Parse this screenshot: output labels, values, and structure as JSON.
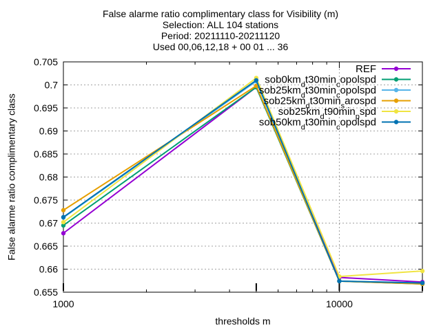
{
  "chart_data": {
    "type": "line",
    "title": [
      "False alarme ratio complimentary class  for Visibility (m)",
      "Selection: ALL     104 stations",
      "Period: 20211110-20211120",
      "Used 00,06,12,18 + 00 01 ... 36"
    ],
    "xlabel": "thresholds m",
    "ylabel": "False alarme ratio complimentary class",
    "x_scale": "log",
    "xlim": [
      1000,
      20000
    ],
    "ylim": [
      0.655,
      0.705
    ],
    "x_ticks": [
      {
        "value": 1000,
        "label": "1000"
      },
      {
        "value": 10000,
        "label": "10000"
      }
    ],
    "y_ticks": [
      {
        "value": 0.655,
        "label": "0.655"
      },
      {
        "value": 0.66,
        "label": "0.66"
      },
      {
        "value": 0.665,
        "label": "0.665"
      },
      {
        "value": 0.67,
        "label": "0.67"
      },
      {
        "value": 0.675,
        "label": "0.675"
      },
      {
        "value": 0.68,
        "label": "0.68"
      },
      {
        "value": 0.685,
        "label": "0.685"
      },
      {
        "value": 0.69,
        "label": "0.69"
      },
      {
        "value": 0.695,
        "label": "0.695"
      },
      {
        "value": 0.7,
        "label": "0.7"
      },
      {
        "value": 0.705,
        "label": "0.705"
      }
    ],
    "grid": true,
    "legend_position": "top-right",
    "x": [
      1000,
      5000,
      10000,
      20000
    ],
    "series": [
      {
        "name": "REF",
        "label_parts": [
          [
            "REF",
            ""
          ]
        ],
        "color": "#9400d3",
        "values": [
          0.6678,
          0.6995,
          0.6582,
          0.6572
        ]
      },
      {
        "name": "sob0km_dt30min_copolspd",
        "label_parts": [
          [
            "sob0km",
            ""
          ],
          [
            "d",
            "sub"
          ],
          [
            "t30min",
            ""
          ],
          [
            "c",
            "sub"
          ],
          [
            "opolspd",
            ""
          ]
        ],
        "color": "#009e73",
        "values": [
          0.6695,
          0.6995,
          0.6574,
          0.6568
        ]
      },
      {
        "name": "sob25km_dt30min_copolspd",
        "label_parts": [
          [
            "sob25km",
            ""
          ],
          [
            "d",
            "sub"
          ],
          [
            "t30min",
            ""
          ],
          [
            "c",
            "sub"
          ],
          [
            "opolspd",
            ""
          ]
        ],
        "color": "#56b4e9",
        "values": [
          0.6712,
          0.7008,
          0.6574,
          0.657
        ]
      },
      {
        "name": "sob25km_dt30min_sarospd",
        "label_parts": [
          [
            "sob25km",
            ""
          ],
          [
            "d",
            "sub"
          ],
          [
            "t30min",
            ""
          ],
          [
            "s",
            "sub"
          ],
          [
            "arospd",
            ""
          ]
        ],
        "color": "#e69f00",
        "values": [
          0.6728,
          0.6998,
          0.6574,
          0.6568
        ]
      },
      {
        "name": "sob25km_dt90min_pspd",
        "label_parts": [
          [
            "sob25km",
            ""
          ],
          [
            "d",
            "sub"
          ],
          [
            "t90min",
            ""
          ],
          [
            "p",
            "sub"
          ],
          [
            "spd",
            ""
          ]
        ],
        "color": "#f0e442",
        "values": [
          0.6702,
          0.7015,
          0.6584,
          0.6596
        ]
      },
      {
        "name": "sob50km_dt30min_copolspd",
        "label_parts": [
          [
            "sob50km",
            ""
          ],
          [
            "d",
            "sub"
          ],
          [
            "t30min",
            ""
          ],
          [
            "c",
            "sub"
          ],
          [
            "opolspd",
            ""
          ]
        ],
        "color": "#0072b2",
        "values": [
          0.6713,
          0.701,
          0.6574,
          0.657
        ]
      }
    ]
  }
}
